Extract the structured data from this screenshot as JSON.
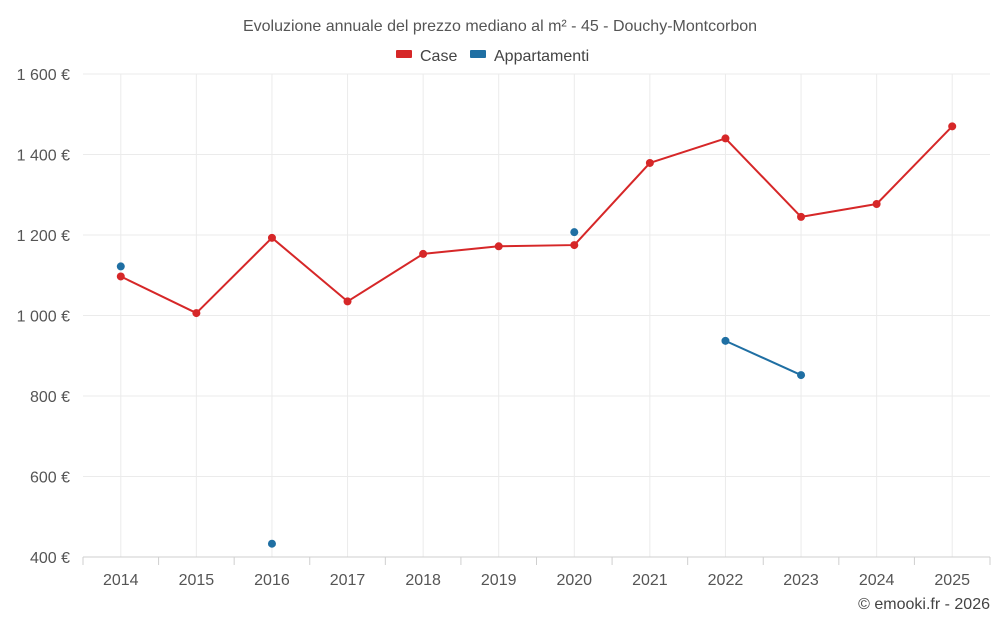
{
  "chart_data": {
    "type": "line",
    "title": "Evoluzione annuale del prezzo mediano al m² - 45 - Douchy-Montcorbon",
    "xlabel": "",
    "ylabel": "",
    "categories": [
      "2014",
      "2015",
      "2016",
      "2017",
      "2018",
      "2019",
      "2020",
      "2021",
      "2022",
      "2023",
      "2024",
      "2025"
    ],
    "ylim": [
      400,
      1600
    ],
    "yticks": [
      400,
      600,
      800,
      1000,
      1200,
      1400,
      1600
    ],
    "ytick_labels": [
      "400 €",
      "600 €",
      "800 €",
      "1 000 €",
      "1 200 €",
      "1 400 €",
      "1 600 €"
    ],
    "grid": true,
    "legend_position": "top-center",
    "series": [
      {
        "name": "Case",
        "color": "#d62728",
        "values": [
          1097,
          1006,
          1193,
          1035,
          1153,
          1172,
          1175,
          1379,
          1440,
          1245,
          1277,
          1470
        ]
      },
      {
        "name": "Appartamenti",
        "color": "#1f6fa3",
        "values": [
          1122,
          null,
          433,
          null,
          null,
          null,
          1207,
          null,
          937,
          852,
          null,
          null
        ]
      }
    ]
  },
  "credit": "© emooki.fr - 2026"
}
